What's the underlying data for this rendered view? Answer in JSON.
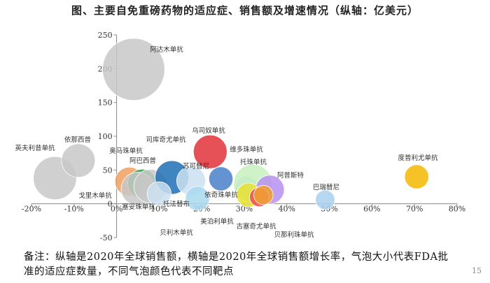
{
  "title": "图、主要自免重磅药物的适应症、销售额及增速情况（纵轴：亿美元）",
  "note": "备注：纵轴是2020年全球销售额，横轴是2020年全球销售额增长率，气泡大小代表FDA批准的适应症数量，不同气泡颜色代表不同靶点",
  "page_number": "15",
  "chart_data": {
    "type": "scatter",
    "title": "图、主要自免重磅药物的适应症、销售额及增速情况（纵轴：亿美元）",
    "xlabel": "",
    "ylabel": "",
    "xlim": [
      -0.2,
      0.8
    ],
    "ylim": [
      -50,
      250
    ],
    "x_ticks": [
      "-20%",
      "-10%",
      "0%",
      "10%",
      "20%",
      "30%",
      "40%",
      "50%",
      "60%",
      "70%",
      "80%"
    ],
    "y_ticks": [
      "-50",
      "0",
      "50",
      "100",
      "150",
      "200",
      "250"
    ],
    "grid": false,
    "points": [
      {
        "name": "阿达木单抗",
        "x": 0.04,
        "y": 199,
        "size": 11,
        "color": "#c8c8c8"
      },
      {
        "name": "英夫利昔单抗",
        "x": -0.145,
        "y": 38,
        "size": 7,
        "color": "#c8c8c8"
      },
      {
        "name": "依那西普",
        "x": -0.09,
        "y": 64,
        "size": 5,
        "color": "#c8c8c8"
      },
      {
        "name": "奥马珠单抗",
        "x": 0.03,
        "y": 33,
        "size": 4,
        "color": "#f0a060"
      },
      {
        "name": "阿巴西普",
        "x": 0.06,
        "y": 30,
        "size": 4,
        "color": "#2ea84e"
      },
      {
        "name": "戈里木单抗",
        "x": 0.05,
        "y": 22,
        "size": 5,
        "color": "#c8c8c8"
      },
      {
        "name": "塞妥珠单抗",
        "x": 0.08,
        "y": 26,
        "size": 5,
        "color": "#c8c8c8"
      },
      {
        "name": "司库奇尤单抗",
        "x": 0.13,
        "y": 39,
        "size": 5,
        "color": "#1f6fb5"
      },
      {
        "name": "托法替布",
        "x": 0.1,
        "y": 15,
        "size": 3,
        "color": "#cbe0f0"
      },
      {
        "name": "苏可替尼",
        "x": 0.175,
        "y": 34,
        "size": 4,
        "color": "#cbe0f0"
      },
      {
        "name": "乌司奴单抗",
        "x": 0.22,
        "y": 77,
        "size": 5,
        "color": "#e0333a"
      },
      {
        "name": "贝利木单抗",
        "x": 0.19,
        "y": 8,
        "size": 3,
        "color": "#a8d8ee"
      },
      {
        "name": "维多珠单抗",
        "x": 0.245,
        "y": 37,
        "size": 3,
        "color": "#4a7fc8"
      },
      {
        "name": "依奇珠单抗",
        "x": 0.305,
        "y": 23,
        "size": 3,
        "color": "#a8d8ee"
      },
      {
        "name": "托珠单抗",
        "x": 0.32,
        "y": 30,
        "size": 6,
        "color": "#c8f0c0"
      },
      {
        "name": "阿普斯特",
        "x": 0.36,
        "y": 21,
        "size": 4,
        "color": "#b890f0"
      },
      {
        "name": "美泊利单抗",
        "x": 0.31,
        "y": 13,
        "size": 3,
        "color": "#e8e030"
      },
      {
        "name": "古塞奇尤单抗",
        "x": 0.335,
        "y": 10,
        "size": 2,
        "color": "#f05050"
      },
      {
        "name": "贝那利珠单抗",
        "x": 0.345,
        "y": 13,
        "size": 2,
        "color": "#f0a030"
      },
      {
        "name": "巴瑞替尼",
        "x": 0.49,
        "y": 6,
        "size": 2,
        "color": "#a8d0f0"
      },
      {
        "name": "度普利尤单抗",
        "x": 0.705,
        "y": 40,
        "size": 3,
        "color": "#f5b800"
      }
    ]
  }
}
